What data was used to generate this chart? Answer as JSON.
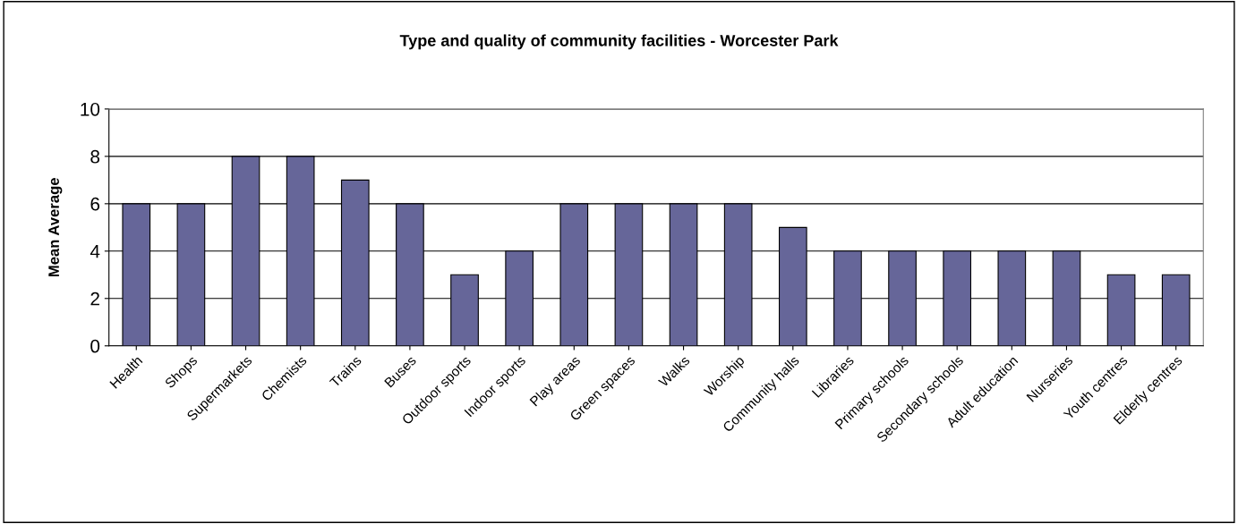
{
  "chart_data": {
    "type": "bar",
    "title": "Type and quality of community facilities - Worcester Park",
    "ylabel": "Mean Average",
    "categories": [
      "Health",
      "Shops",
      "Supermarkets",
      "Chemists",
      "Trains",
      "Buses",
      "Outdoor sports",
      "Indoor sports",
      "Play areas",
      "Green spaces",
      "Walks",
      "Worship",
      "Community halls",
      "Libraries",
      "Primary schools",
      "Secondary schools",
      "Adult education",
      "Nurseries",
      "Youth centres",
      "Elderly centres"
    ],
    "values": [
      6,
      6,
      8,
      8,
      7,
      6,
      3,
      4,
      6,
      6,
      6,
      6,
      5,
      4,
      4,
      4,
      4,
      4,
      3,
      3
    ],
    "color": "#666699",
    "ylim": [
      0,
      10
    ],
    "yticks": [
      0,
      2,
      4,
      6,
      8,
      10
    ],
    "grid": "y"
  }
}
